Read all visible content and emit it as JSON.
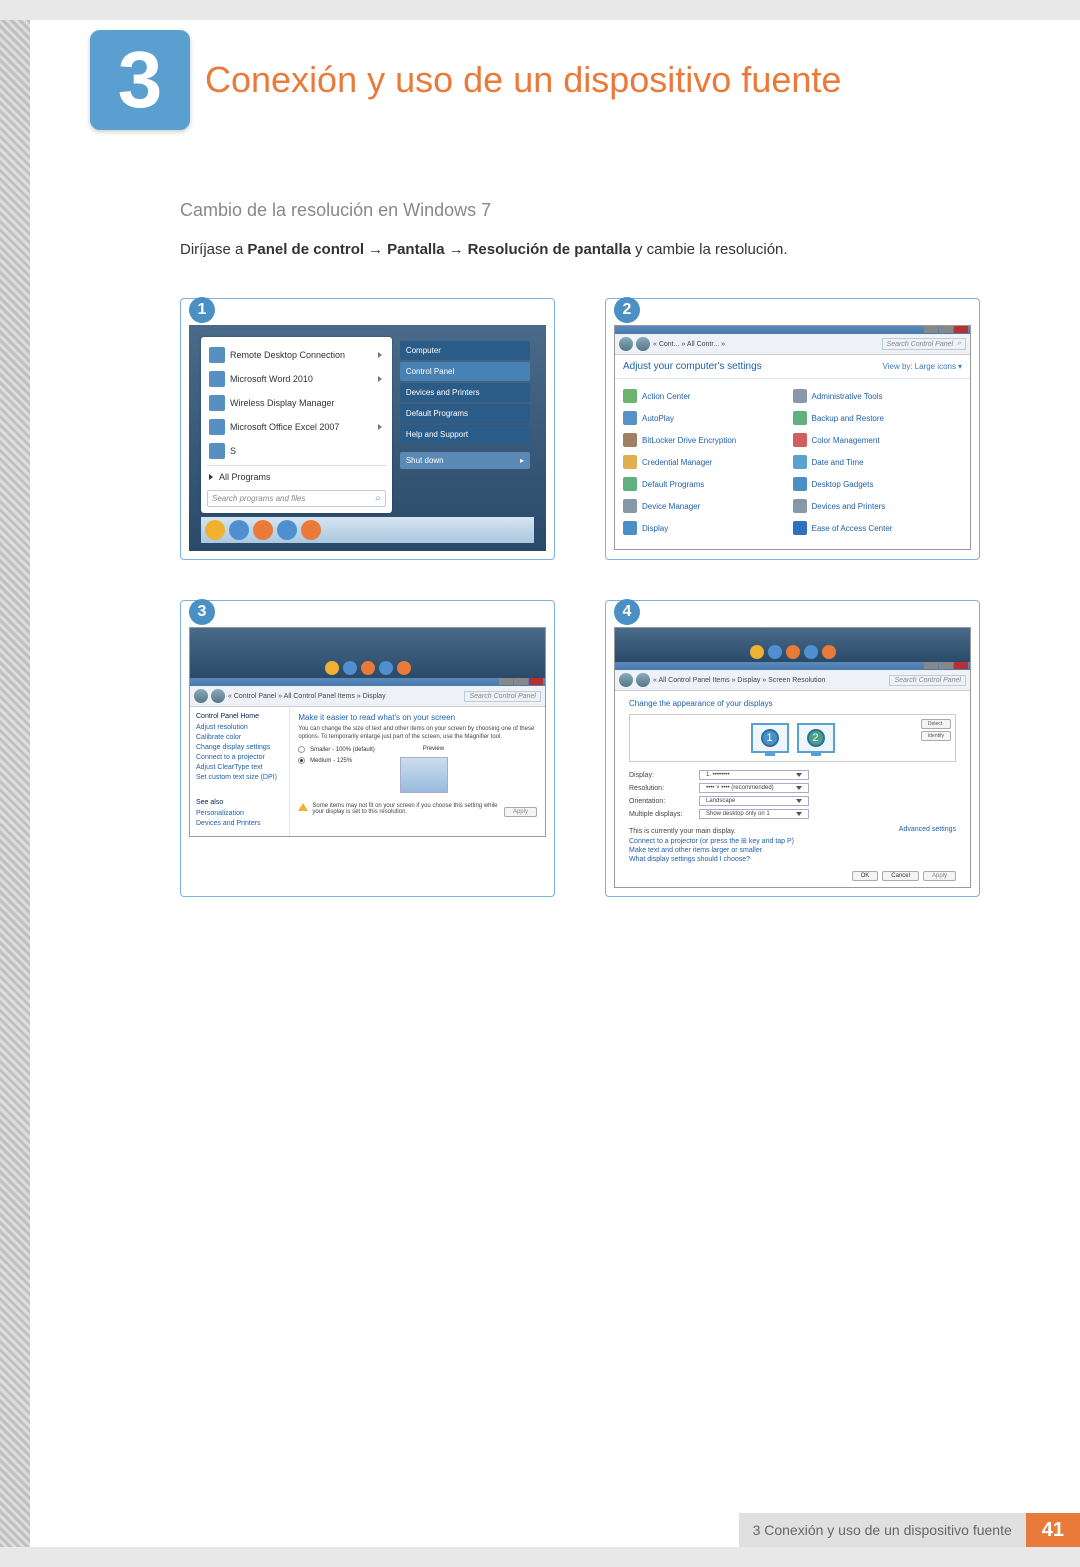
{
  "chapter": {
    "number": "3",
    "title": "Conexión y uso de un dispositivo fuente"
  },
  "subtitle": "Cambio de la resolución en Windows 7",
  "body": {
    "lead": "Diríjase a",
    "path1": "Panel de control",
    "arrow": "→",
    "path2": "Pantalla",
    "path3": "Resolución de pantalla",
    "tail": "y cambie la resolución."
  },
  "shot1": {
    "badge": "1",
    "items": [
      {
        "label": "Remote Desktop Connection",
        "has_more": true
      },
      {
        "label": "Microsoft Word 2010",
        "has_more": true
      },
      {
        "label": "Wireless Display Manager",
        "has_more": false
      },
      {
        "label": "Microsoft Office Excel 2007",
        "has_more": true
      },
      {
        "label": "S",
        "has_more": false
      }
    ],
    "all_programs": "All Programs",
    "search_placeholder": "Search programs and files",
    "right_col": [
      {
        "label": "Computer",
        "active": false
      },
      {
        "label": "Control Panel",
        "active": true
      },
      {
        "label": "Devices and Printers",
        "active": false
      },
      {
        "label": "Default Programs",
        "active": false
      },
      {
        "label": "Help and Support",
        "active": false
      }
    ],
    "shutdown": "Shut down"
  },
  "shot2": {
    "badge": "2",
    "crumb": "« Cont... » All Contr... »",
    "search": "Search Control Panel",
    "heading": "Adjust your computer's settings",
    "view_by_label": "View by:",
    "view_by_value": "Large icons",
    "items_left": [
      {
        "label": "Action Center",
        "color": "#6db36d"
      },
      {
        "label": "AutoPlay",
        "color": "#5990c8"
      },
      {
        "label": "BitLocker Drive Encryption",
        "color": "#a08060"
      },
      {
        "label": "Credential Manager",
        "color": "#e0b050"
      },
      {
        "label": "Default Programs",
        "color": "#60b080"
      },
      {
        "label": "Device Manager",
        "color": "#8898a8"
      },
      {
        "label": "Display",
        "color": "#4a90c8"
      }
    ],
    "items_right": [
      {
        "label": "Administrative Tools",
        "color": "#8898a8"
      },
      {
        "label": "Backup and Restore",
        "color": "#60b080"
      },
      {
        "label": "Color Management",
        "color": "#d06060"
      },
      {
        "label": "Date and Time",
        "color": "#5aa0d0"
      },
      {
        "label": "Desktop Gadgets",
        "color": "#4a90c8"
      },
      {
        "label": "Devices and Printers",
        "color": "#8898a8"
      },
      {
        "label": "Ease of Access Center",
        "color": "#3070c0"
      }
    ]
  },
  "shot3": {
    "badge": "3",
    "crumb": "« Control Panel » All Control Panel Items » Display",
    "search": "Search Control Panel",
    "sidebar_heading": "Control Panel Home",
    "sidebar_links": [
      "Adjust resolution",
      "Calibrate color",
      "Change display settings",
      "Connect to a projector",
      "Adjust ClearType text",
      "Set custom text size (DPI)"
    ],
    "see_also": "See also",
    "see_also_links": [
      "Personalization",
      "Devices and Printers"
    ],
    "title": "Make it easier to read what's on your screen",
    "text": "You can change the size of text and other items on your screen by choosing one of these options. To temporarily enlarge just part of the screen, use the Magnifier tool.",
    "opt1_label": "Smaller - 100% (default)",
    "opt1_preview": "Preview",
    "opt2_label": "Medium - 125%",
    "warning": "Some items may not fit on your screen if you choose this setting while your display is set to this resolution.",
    "apply": "Apply"
  },
  "shot4": {
    "badge": "4",
    "crumb": "« All Control Panel Items » Display » Screen Resolution",
    "search": "Search Control Panel",
    "title": "Change the appearance of your displays",
    "detect": "Detect",
    "identify": "Identify",
    "fields": {
      "display_label": "Display:",
      "display_value": "1. ••••••••",
      "resolution_label": "Resolution:",
      "resolution_value": "•••• × •••• (recommended)",
      "orientation_label": "Orientation:",
      "orientation_value": "Landscape",
      "multiple_label": "Multiple displays:",
      "multiple_value": "Show desktop only on 1"
    },
    "note": "This is currently your main display.",
    "advanced": "Advanced settings",
    "link1": "Connect to a projector (or press the ⊞ key and tap P)",
    "link2": "Make text and other items larger or smaller",
    "link3": "What display settings should I choose?",
    "ok": "OK",
    "cancel": "Cancel",
    "apply": "Apply"
  },
  "footer": {
    "text": "3 Conexión y uso de un dispositivo fuente",
    "page": "41"
  }
}
